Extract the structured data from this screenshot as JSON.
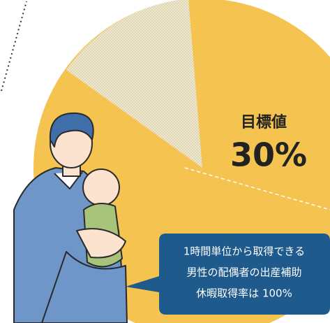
{
  "target": {
    "heading": "目標値",
    "value": "30%"
  },
  "callout": {
    "lines": [
      "1時間単位から取得できる",
      "男性の配偶者の出産補助",
      "休暇取得率は 100%"
    ]
  }
}
